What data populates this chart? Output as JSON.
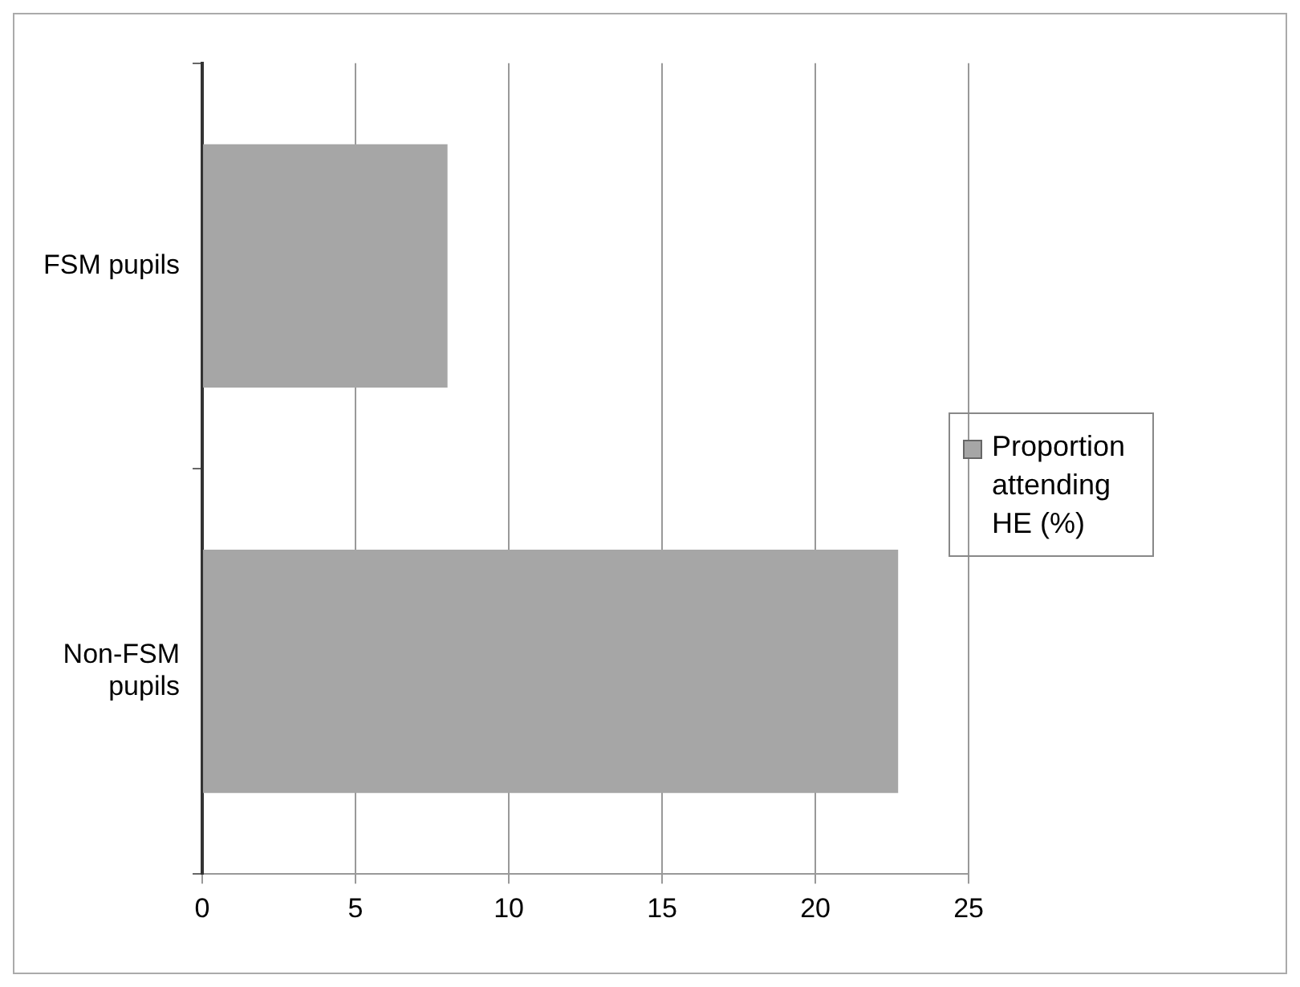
{
  "chart_data": {
    "type": "bar",
    "orientation": "horizontal",
    "categories": [
      "FSM pupils",
      "Non-FSM pupils"
    ],
    "series": [
      {
        "name": "Proportion attending HE (%)",
        "color": "#a6a6a6",
        "values": [
          8.0,
          22.7
        ]
      }
    ],
    "xlim": [
      0,
      25
    ],
    "xticks": [
      0,
      5,
      10,
      15,
      20,
      25
    ],
    "grid": "x",
    "legend": "right"
  }
}
